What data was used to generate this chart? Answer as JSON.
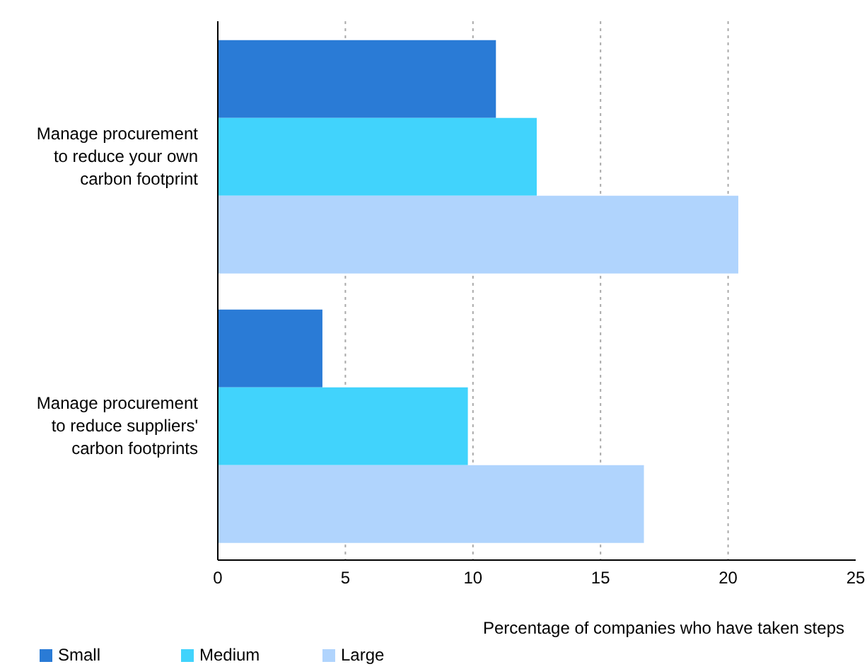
{
  "chart_data": {
    "type": "bar",
    "orientation": "horizontal",
    "xlabel": "Percentage of companies who have taken steps",
    "categories": [
      "Manage procurement to reduce your own carbon footprint",
      "Manage procurement to reduce suppliers' carbon footprints"
    ],
    "series": [
      {
        "name": "Small",
        "color": "#2a7bd6",
        "values": [
          10.9,
          4.1
        ]
      },
      {
        "name": "Medium",
        "color": "#41d3fc",
        "values": [
          12.5,
          9.8
        ]
      },
      {
        "name": "Large",
        "color": "#b0d4fd",
        "values": [
          20.4,
          16.7
        ]
      }
    ],
    "xlim": [
      0,
      25
    ],
    "xticks": [
      0,
      5,
      10,
      15,
      20,
      25
    ],
    "grid": "x",
    "legend": "bottom left"
  }
}
